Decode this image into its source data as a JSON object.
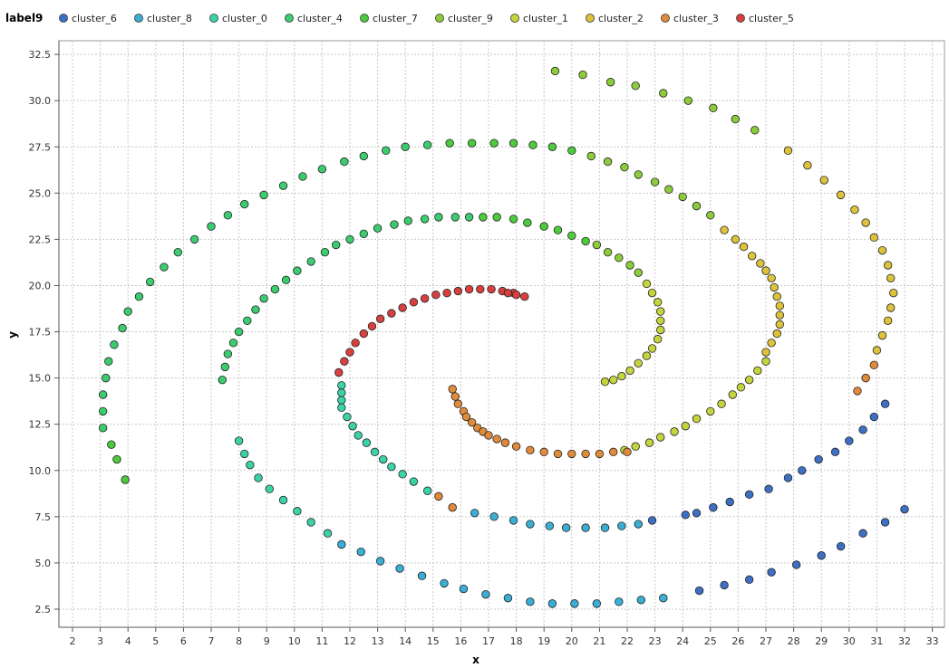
{
  "chart_data": {
    "type": "scatter",
    "xlabel": "x",
    "ylabel": "y",
    "xlim": [
      2,
      33
    ],
    "ylim": [
      2.5,
      32.5
    ],
    "grid": true,
    "legend_position": "top",
    "legend_title": "label9",
    "series": [
      {
        "name": "cluster_6",
        "color": "#3d6fc4",
        "x": [
          22.9,
          24.1,
          24.5,
          25.1,
          25.7,
          26.4,
          27.1,
          27.8,
          28.3,
          28.9,
          29.5,
          30.0,
          30.5,
          30.9,
          31.3,
          32.0,
          31.3,
          30.5,
          29.7,
          29.0,
          28.1,
          27.2,
          26.4,
          25.5,
          24.6
        ],
        "y": [
          7.3,
          7.6,
          7.7,
          8.0,
          8.3,
          8.7,
          9.0,
          9.6,
          10.0,
          10.6,
          11.0,
          11.6,
          12.2,
          12.9,
          13.6,
          7.9,
          7.2,
          6.6,
          5.9,
          5.4,
          4.9,
          4.5,
          4.1,
          3.8,
          3.5
        ]
      },
      {
        "name": "cluster_8",
        "color": "#3aaed4",
        "x": [
          16.5,
          17.2,
          17.9,
          18.5,
          19.2,
          19.8,
          20.5,
          21.2,
          21.8,
          22.4,
          11.7,
          12.4,
          13.1,
          13.8,
          14.6,
          15.4,
          16.1,
          16.9,
          17.7,
          18.5,
          19.3,
          20.1,
          20.9,
          21.7,
          22.5,
          23.3
        ],
        "y": [
          7.7,
          7.5,
          7.3,
          7.1,
          7.0,
          6.9,
          6.9,
          6.9,
          7.0,
          7.1,
          6.0,
          5.6,
          5.1,
          4.7,
          4.3,
          3.9,
          3.6,
          3.3,
          3.1,
          2.9,
          2.8,
          2.8,
          2.8,
          2.9,
          3.0,
          3.1
        ]
      },
      {
        "name": "cluster_0",
        "color": "#3cd2a8",
        "x": [
          11.7,
          11.7,
          11.7,
          11.7,
          11.9,
          12.1,
          12.3,
          12.6,
          12.9,
          13.2,
          13.5,
          13.9,
          14.3,
          14.8,
          8.0,
          8.2,
          8.4,
          8.7,
          9.1,
          9.6,
          10.1,
          10.6,
          11.2
        ],
        "y": [
          14.6,
          14.2,
          13.8,
          13.4,
          12.9,
          12.4,
          11.9,
          11.5,
          11.0,
          10.6,
          10.2,
          9.8,
          9.4,
          8.9,
          11.6,
          10.9,
          10.3,
          9.6,
          9.0,
          8.4,
          7.8,
          7.2,
          6.6
        ]
      },
      {
        "name": "cluster_4",
        "color": "#3ccc70",
        "x": [
          7.4,
          7.5,
          7.6,
          7.8,
          8.0,
          8.3,
          8.6,
          8.9,
          9.3,
          9.7,
          10.1,
          10.6,
          11.1,
          11.5,
          12.0,
          12.5,
          13.0,
          13.6,
          14.1,
          14.7,
          15.2,
          15.8,
          16.3,
          3.1,
          3.1,
          3.1,
          3.2,
          3.3,
          3.5,
          3.8,
          4.0,
          4.4,
          4.8,
          5.3,
          5.8,
          6.4,
          7.0,
          7.6,
          8.2,
          8.9,
          9.6,
          10.3,
          11.0,
          11.8,
          12.5,
          13.3,
          14.0,
          14.8
        ],
        "y": [
          14.9,
          15.6,
          16.3,
          16.9,
          17.5,
          18.1,
          18.7,
          19.3,
          19.8,
          20.3,
          20.8,
          21.3,
          21.8,
          22.2,
          22.5,
          22.8,
          23.1,
          23.3,
          23.5,
          23.6,
          23.7,
          23.7,
          23.7,
          12.3,
          13.2,
          14.1,
          15.0,
          15.9,
          16.8,
          17.7,
          18.6,
          19.4,
          20.2,
          21.0,
          21.8,
          22.5,
          23.2,
          23.8,
          24.4,
          24.9,
          25.4,
          25.9,
          26.3,
          26.7,
          27.0,
          27.3,
          27.5,
          27.6
        ]
      },
      {
        "name": "cluster_7",
        "color": "#4ccc3c",
        "x": [
          16.8,
          17.3,
          17.9,
          18.4,
          19.0,
          19.5,
          20.0,
          20.5,
          3.9,
          3.6,
          3.4,
          15.6,
          16.4,
          17.2,
          17.9,
          18.6,
          19.3,
          20.0
        ],
        "y": [
          23.7,
          23.7,
          23.6,
          23.4,
          23.2,
          23.0,
          22.7,
          22.4,
          9.5,
          10.6,
          11.4,
          27.7,
          27.7,
          27.7,
          27.7,
          27.6,
          27.5,
          27.3
        ]
      },
      {
        "name": "cluster_9",
        "color": "#8ccc3c",
        "x": [
          20.9,
          21.3,
          21.7,
          22.1,
          22.4,
          20.7,
          21.3,
          21.9,
          22.4,
          23.0,
          23.5,
          24.0,
          24.5,
          25.0,
          19.4,
          20.4,
          21.4,
          22.3,
          23.3,
          24.2,
          25.1,
          25.9,
          26.6
        ],
        "y": [
          22.2,
          21.8,
          21.5,
          21.1,
          20.7,
          27.0,
          26.7,
          26.4,
          26.0,
          25.6,
          25.2,
          24.8,
          24.3,
          23.8,
          31.6,
          31.4,
          31.0,
          30.8,
          30.4,
          30.0,
          29.6,
          29.0,
          28.4
        ]
      },
      {
        "name": "cluster_1",
        "color": "#c4d43c",
        "x": [
          22.7,
          22.9,
          23.1,
          23.2,
          23.2,
          23.2,
          23.1,
          22.9,
          22.7,
          22.4,
          22.1,
          21.8,
          21.5,
          21.2,
          21.9,
          22.3,
          22.8,
          23.2,
          23.7,
          24.1,
          24.5,
          25.0,
          25.4,
          25.8,
          26.1,
          26.4,
          26.7,
          27.0
        ],
        "y": [
          20.1,
          19.6,
          19.1,
          18.6,
          18.1,
          17.6,
          17.1,
          16.6,
          16.2,
          15.8,
          15.4,
          15.1,
          14.9,
          14.8,
          11.1,
          11.3,
          11.5,
          11.8,
          12.1,
          12.4,
          12.8,
          13.2,
          13.6,
          14.1,
          14.5,
          14.9,
          15.4,
          15.9
        ]
      },
      {
        "name": "cluster_2",
        "color": "#ddc23c",
        "x": [
          27.0,
          27.2,
          27.4,
          27.5,
          27.5,
          27.5,
          27.4,
          27.3,
          27.2,
          27.0,
          26.8,
          26.5,
          26.2,
          25.9,
          25.5,
          27.8,
          28.5,
          29.1,
          29.7,
          30.2,
          30.6,
          30.9,
          31.2,
          31.4,
          31.5,
          31.6,
          31.5,
          31.4,
          31.2,
          31.0
        ],
        "y": [
          16.4,
          16.9,
          17.4,
          17.9,
          18.4,
          18.9,
          19.4,
          19.9,
          20.4,
          20.8,
          21.2,
          21.6,
          22.1,
          22.5,
          23.0,
          27.3,
          26.5,
          25.7,
          24.9,
          24.1,
          23.4,
          22.6,
          21.9,
          21.1,
          20.4,
          19.6,
          18.8,
          18.1,
          17.3,
          16.5
        ]
      },
      {
        "name": "cluster_3",
        "color": "#e08a3c",
        "x": [
          15.7,
          15.8,
          15.9,
          16.1,
          16.2,
          16.4,
          16.6,
          16.8,
          17.0,
          17.3,
          17.6,
          18.0,
          18.5,
          19.0,
          19.5,
          20.0,
          20.5,
          21.0,
          21.5,
          22.0,
          30.9,
          30.6,
          30.3,
          15.2,
          15.7
        ],
        "y": [
          14.4,
          14.0,
          13.6,
          13.2,
          12.9,
          12.6,
          12.3,
          12.1,
          11.9,
          11.7,
          11.5,
          11.3,
          11.1,
          11.0,
          10.9,
          10.9,
          10.9,
          10.9,
          11.0,
          11.0,
          15.7,
          15.0,
          14.3,
          8.6,
          8.0
        ]
      },
      {
        "name": "cluster_5",
        "color": "#d84040",
        "x": [
          11.6,
          11.8,
          12.0,
          12.2,
          12.5,
          12.8,
          13.1,
          13.5,
          13.9,
          14.3,
          14.7,
          15.1,
          15.5,
          15.9,
          16.3,
          16.7,
          17.1,
          17.5,
          17.9,
          18.3,
          18.0,
          17.7
        ],
        "y": [
          15.3,
          15.9,
          16.4,
          16.9,
          17.4,
          17.8,
          18.2,
          18.5,
          18.8,
          19.1,
          19.3,
          19.5,
          19.6,
          19.7,
          19.8,
          19.8,
          19.8,
          19.7,
          19.6,
          19.4,
          19.5,
          19.6
        ]
      }
    ]
  }
}
